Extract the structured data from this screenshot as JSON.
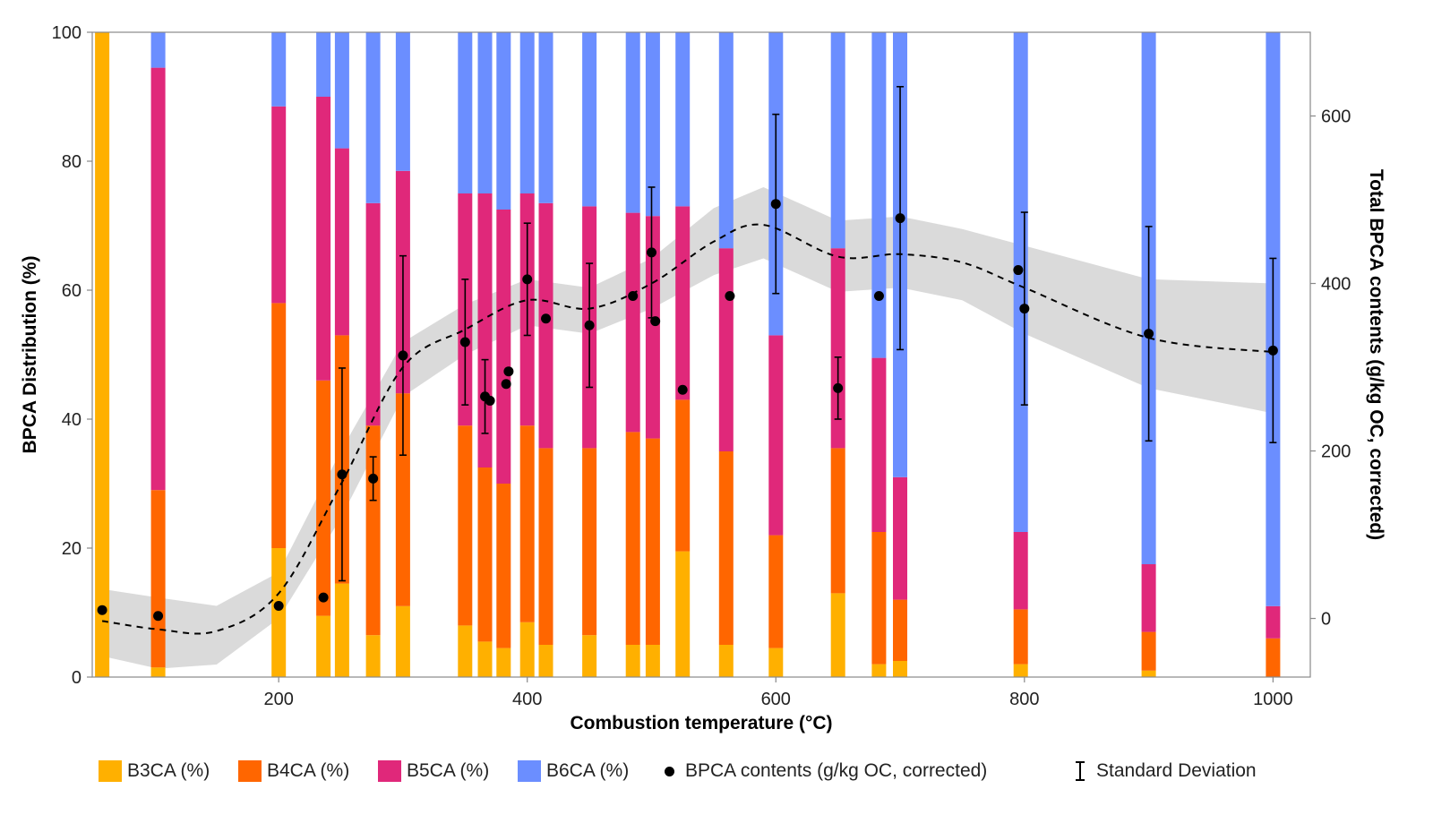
{
  "chart_data": {
    "type": "bar",
    "xlabel": "Combustion temperature (°C)",
    "ylabel": "BPCA Distribution (%)",
    "y2label": "Total BPCA contents (g/kg OC, corrected)",
    "xlim": [
      50,
      1030
    ],
    "ylim": [
      0,
      100
    ],
    "y2lim": [
      -70,
      700
    ],
    "xticks": [
      200,
      400,
      600,
      800,
      1000
    ],
    "yticks": [
      0,
      20,
      40,
      60,
      80,
      100
    ],
    "y2ticks": [
      0,
      200,
      400,
      600
    ],
    "colors": {
      "B3CA": "#FFB000",
      "B4CA": "#FF6600",
      "B5CA": "#E0287A",
      "B6CA": "#6B8EFF",
      "band": "#d3d3d3",
      "curve": "#000000"
    },
    "bars": [
      {
        "x": 58,
        "B3CA": 100,
        "B4CA": 0,
        "B5CA": 0,
        "B6CA": 0
      },
      {
        "x": 103,
        "B3CA": 1.5,
        "B4CA": 27.5,
        "B5CA": 65.5,
        "B6CA": 5.5
      },
      {
        "x": 200,
        "B3CA": 20,
        "B4CA": 38,
        "B5CA": 30.5,
        "B6CA": 11.5
      },
      {
        "x": 236,
        "B3CA": 9.5,
        "B4CA": 36.5,
        "B5CA": 44,
        "B6CA": 10
      },
      {
        "x": 251,
        "B3CA": 14.5,
        "B4CA": 38.5,
        "B5CA": 29,
        "B6CA": 18
      },
      {
        "x": 276,
        "B3CA": 6.5,
        "B4CA": 32.5,
        "B5CA": 34.5,
        "B6CA": 26.5
      },
      {
        "x": 300,
        "B3CA": 11,
        "B4CA": 33,
        "B5CA": 34.5,
        "B6CA": 21.5
      },
      {
        "x": 350,
        "B3CA": 8,
        "B4CA": 31,
        "B5CA": 36,
        "B6CA": 25
      },
      {
        "x": 366,
        "B3CA": 5.5,
        "B4CA": 27,
        "B5CA": 42.5,
        "B6CA": 25
      },
      {
        "x": 381,
        "B3CA": 4.5,
        "B4CA": 25.5,
        "B5CA": 42.5,
        "B6CA": 27.5
      },
      {
        "x": 400,
        "B3CA": 8.5,
        "B4CA": 30.5,
        "B5CA": 36,
        "B6CA": 25
      },
      {
        "x": 415,
        "B3CA": 5,
        "B4CA": 30.5,
        "B5CA": 38,
        "B6CA": 26.5
      },
      {
        "x": 450,
        "B3CA": 6.5,
        "B4CA": 29,
        "B5CA": 37.5,
        "B6CA": 27
      },
      {
        "x": 485,
        "B3CA": 5,
        "B4CA": 33,
        "B5CA": 34,
        "B6CA": 28
      },
      {
        "x": 501,
        "B3CA": 5,
        "B4CA": 32,
        "B5CA": 34.5,
        "B6CA": 28.5
      },
      {
        "x": 525,
        "B3CA": 19.5,
        "B4CA": 23.5,
        "B5CA": 30,
        "B6CA": 27
      },
      {
        "x": 560,
        "B3CA": 5,
        "B4CA": 30,
        "B5CA": 31.5,
        "B6CA": 33.5
      },
      {
        "x": 600,
        "B3CA": 4.5,
        "B4CA": 17.5,
        "B5CA": 31,
        "B6CA": 47
      },
      {
        "x": 650,
        "B3CA": 13,
        "B4CA": 22.5,
        "B5CA": 31,
        "B6CA": 33.5
      },
      {
        "x": 683,
        "B3CA": 2,
        "B4CA": 20.5,
        "B5CA": 27,
        "B6CA": 50.5
      },
      {
        "x": 700,
        "B3CA": 2.5,
        "B4CA": 9.5,
        "B5CA": 19,
        "B6CA": 69
      },
      {
        "x": 797,
        "B3CA": 2,
        "B4CA": 8.5,
        "B5CA": 12,
        "B6CA": 77.5
      },
      {
        "x": 900,
        "B3CA": 1,
        "B4CA": 6,
        "B5CA": 10.5,
        "B6CA": 82.5
      },
      {
        "x": 1000,
        "B3CA": 0,
        "B4CA": 6,
        "B5CA": 5,
        "B6CA": 89
      }
    ],
    "points": [
      {
        "x": 58,
        "y": 10,
        "sd": null
      },
      {
        "x": 103,
        "y": 3,
        "sd": null
      },
      {
        "x": 200,
        "y": 15,
        "sd": null
      },
      {
        "x": 236,
        "y": 25,
        "sd": null
      },
      {
        "x": 251,
        "y": 172,
        "sd": 127
      },
      {
        "x": 276,
        "y": 167,
        "sd": 26
      },
      {
        "x": 300,
        "y": 314,
        "sd": 119
      },
      {
        "x": 350,
        "y": 330,
        "sd": 75
      },
      {
        "x": 366,
        "y": 265,
        "sd": 44
      },
      {
        "x": 370,
        "y": 260,
        "sd": null
      },
      {
        "x": 383,
        "y": 280,
        "sd": null
      },
      {
        "x": 385,
        "y": 295,
        "sd": null
      },
      {
        "x": 400,
        "y": 405,
        "sd": 67
      },
      {
        "x": 415,
        "y": 358,
        "sd": null
      },
      {
        "x": 450,
        "y": 350,
        "sd": 74
      },
      {
        "x": 485,
        "y": 385,
        "sd": null
      },
      {
        "x": 500,
        "y": 437,
        "sd": 78
      },
      {
        "x": 503,
        "y": 355,
        "sd": null
      },
      {
        "x": 525,
        "y": 273,
        "sd": null
      },
      {
        "x": 563,
        "y": 385,
        "sd": null
      },
      {
        "x": 600,
        "y": 495,
        "sd": 107
      },
      {
        "x": 650,
        "y": 275,
        "sd": 37
      },
      {
        "x": 683,
        "y": 385,
        "sd": null
      },
      {
        "x": 700,
        "y": 478,
        "sd": 157
      },
      {
        "x": 795,
        "y": 416,
        "sd": null
      },
      {
        "x": 800,
        "y": 370,
        "sd": 115
      },
      {
        "x": 900,
        "y": 340,
        "sd": 128
      },
      {
        "x": 1000,
        "y": 320,
        "sd": 110
      }
    ],
    "trend": [
      {
        "x": 58,
        "y": -3,
        "lo": -45,
        "hi": 35
      },
      {
        "x": 103,
        "y": -13,
        "lo": -60,
        "hi": 25
      },
      {
        "x": 150,
        "y": -15,
        "lo": -55,
        "hi": 15
      },
      {
        "x": 200,
        "y": 30,
        "lo": 0,
        "hi": 55
      },
      {
        "x": 250,
        "y": 160,
        "lo": 120,
        "hi": 200
      },
      {
        "x": 300,
        "y": 300,
        "lo": 265,
        "hi": 330
      },
      {
        "x": 350,
        "y": 345,
        "lo": 315,
        "hi": 375
      },
      {
        "x": 400,
        "y": 380,
        "lo": 350,
        "hi": 405
      },
      {
        "x": 450,
        "y": 370,
        "lo": 340,
        "hi": 395
      },
      {
        "x": 500,
        "y": 400,
        "lo": 370,
        "hi": 430
      },
      {
        "x": 550,
        "y": 450,
        "lo": 410,
        "hi": 490
      },
      {
        "x": 590,
        "y": 470,
        "lo": 430,
        "hi": 515
      },
      {
        "x": 650,
        "y": 432,
        "lo": 390,
        "hi": 475
      },
      {
        "x": 700,
        "y": 435,
        "lo": 395,
        "hi": 480
      },
      {
        "x": 750,
        "y": 425,
        "lo": 380,
        "hi": 465
      },
      {
        "x": 800,
        "y": 395,
        "lo": 340,
        "hi": 445
      },
      {
        "x": 900,
        "y": 335,
        "lo": 275,
        "hi": 405
      },
      {
        "x": 1000,
        "y": 318,
        "lo": 245,
        "hi": 400
      }
    ],
    "legend": {
      "b3": "B3CA (%)",
      "b4": "B4CA (%)",
      "b5": "B5CA (%)",
      "b6": "B6CA (%)",
      "points": "BPCA contents (g/kg OC, corrected)",
      "sd": "Standard Deviation"
    }
  }
}
